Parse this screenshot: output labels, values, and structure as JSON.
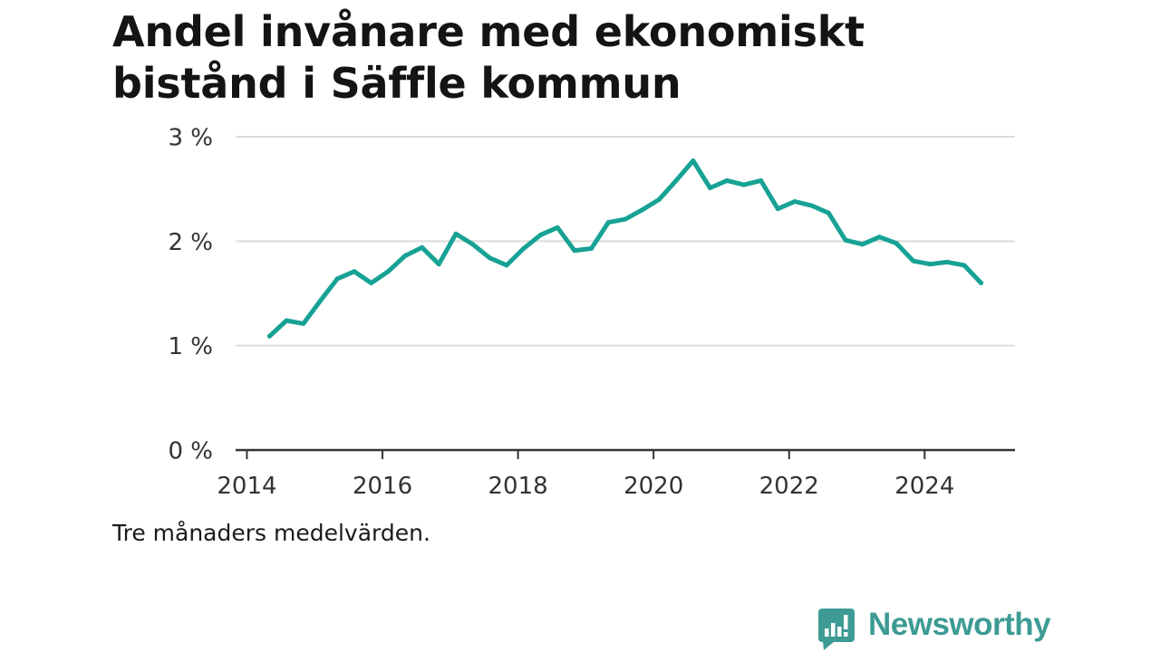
{
  "chart_data": {
    "type": "line",
    "title": "Andel invånare med ekonomiskt bistånd i Säffle kommun",
    "note": "Tre månaders medelvärden.",
    "x": [
      "2014-05",
      "2014-08",
      "2014-11",
      "2015-02",
      "2015-05",
      "2015-08",
      "2015-11",
      "2016-02",
      "2016-05",
      "2016-08",
      "2016-11",
      "2017-02",
      "2017-05",
      "2017-08",
      "2017-11",
      "2018-02",
      "2018-05",
      "2018-08",
      "2018-11",
      "2019-02",
      "2019-05",
      "2019-08",
      "2019-11",
      "2020-02",
      "2020-05",
      "2020-08",
      "2020-11",
      "2021-02",
      "2021-05",
      "2021-08",
      "2021-11",
      "2022-02",
      "2022-05",
      "2022-08",
      "2022-11",
      "2023-02",
      "2023-05",
      "2023-08",
      "2023-11",
      "2024-02",
      "2024-05",
      "2024-08",
      "2024-11"
    ],
    "series": [
      {
        "values": [
          1.09,
          1.24,
          1.21,
          1.43,
          1.64,
          1.71,
          1.6,
          1.71,
          1.86,
          1.94,
          1.78,
          2.07,
          1.97,
          1.84,
          1.77,
          1.93,
          2.06,
          2.13,
          1.91,
          1.93,
          2.18,
          2.21,
          2.3,
          2.4,
          2.58,
          2.77,
          2.51,
          2.58,
          2.54,
          2.58,
          2.31,
          2.38,
          2.34,
          2.27,
          2.01,
          1.97,
          2.04,
          1.98,
          1.81,
          1.78,
          1.8,
          1.77,
          1.6
        ],
        "color": "#17a294"
      }
    ],
    "xlim": [
      "2013-11",
      "2025-05"
    ],
    "ylim": [
      0,
      3
    ],
    "xticks": [
      "2014",
      "2016",
      "2018",
      "2020",
      "2022",
      "2024"
    ],
    "yticks": [
      {
        "value": 0,
        "label": "0 %"
      },
      {
        "value": 1,
        "label": "1 %"
      },
      {
        "value": 2,
        "label": "2 %"
      },
      {
        "value": 3,
        "label": "3 %"
      }
    ],
    "grid": true,
    "legend": false
  },
  "logo": {
    "text": "Newsworthy",
    "icon": "newsworthy-logo-icon",
    "color": "#3d9b94"
  },
  "colors": {
    "gridline": "#dcdcdc",
    "axis": "#333333"
  }
}
